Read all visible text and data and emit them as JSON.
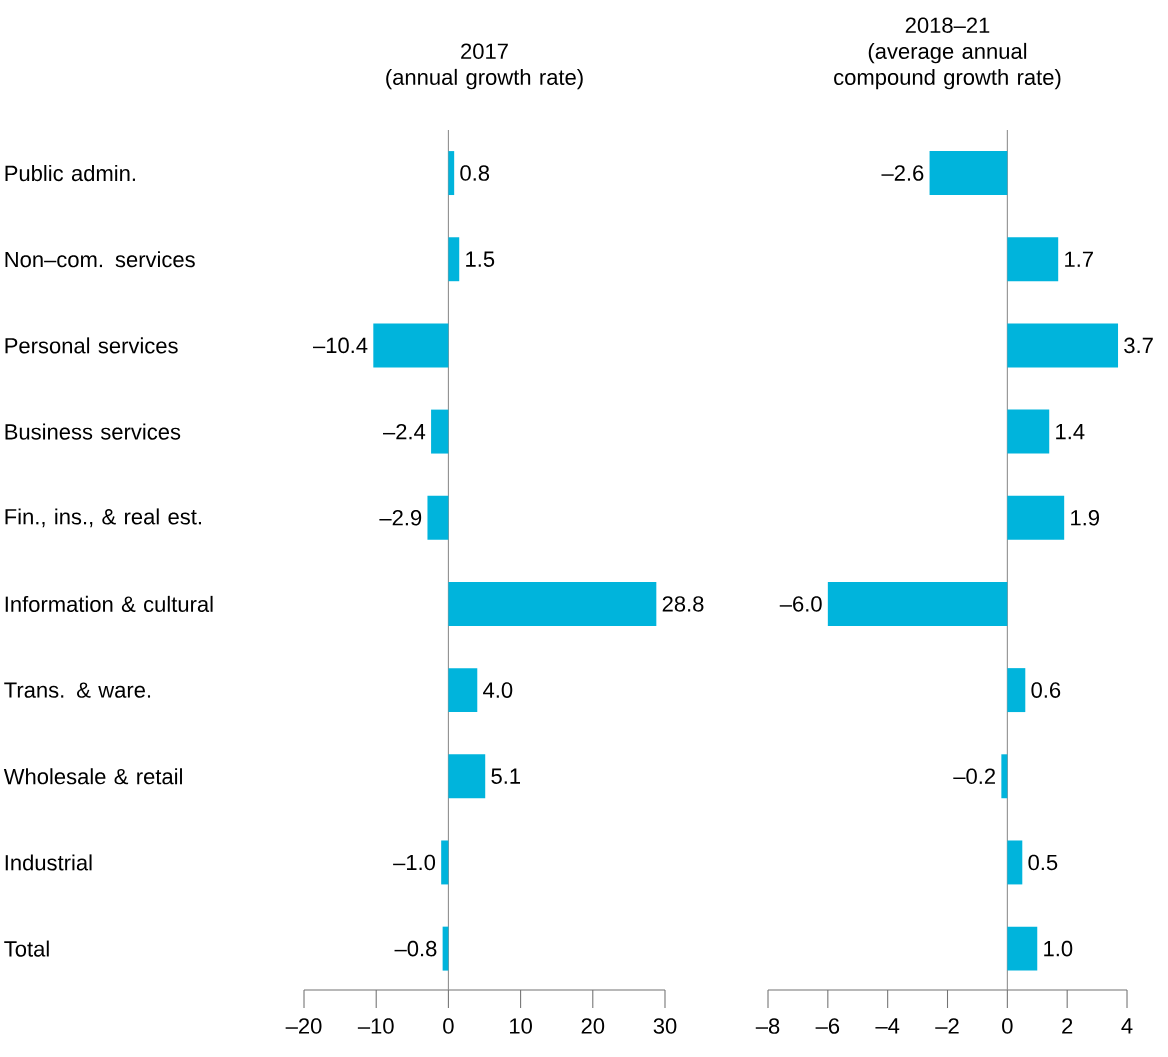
{
  "chart_data": [
    {
      "type": "bar",
      "orientation": "horizontal",
      "title": "2017",
      "subtitle": "(annual growth rate)",
      "categories": [
        "Public admin.",
        "Non–com. services",
        "Personal services",
        "Business services",
        "Fin., ins., & real est.",
        "Information & cultural",
        "Trans. & ware.",
        "Wholesale & retail",
        "Industrial",
        "Total"
      ],
      "values": [
        0.8,
        1.5,
        -10.4,
        -2.4,
        -2.9,
        28.8,
        4.0,
        5.1,
        -1.0,
        -0.8
      ],
      "value_labels": [
        "0.8",
        "1.5",
        "–10.4",
        "–2.4",
        "–2.9",
        "28.8",
        "4.0",
        "5.1",
        "–1.0",
        "–0.8"
      ],
      "color": "#00b4dc",
      "xlim": [
        -20,
        30
      ],
      "xticks": [
        {
          "value": -20,
          "label": "–20"
        },
        {
          "value": -10,
          "label": "–10"
        },
        0,
        10,
        20,
        30
      ],
      "ref_lines": [
        {
          "axis": "x",
          "value": 0,
          "color": "#8c8c8c"
        }
      ]
    },
    {
      "type": "bar",
      "orientation": "horizontal",
      "title": "2018–21",
      "subtitle": "(average annual compound growth rate)",
      "categories": [
        null,
        null,
        null,
        null,
        null,
        null,
        null,
        null,
        null,
        null
      ],
      "values": [
        -2.6,
        1.7,
        3.7,
        1.4,
        1.9,
        -6.0,
        0.6,
        -0.2,
        0.5,
        1.0
      ],
      "value_labels": [
        "–2.6",
        "1.7",
        "3.7",
        "1.4",
        "1.9",
        "–6.0",
        "0.6",
        "–0.2",
        "0.5",
        "1.0"
      ],
      "color": "#00b4dc",
      "xlim": [
        -8,
        4
      ],
      "xticks": [
        {
          "value": -8,
          "label": "–8"
        },
        {
          "value": -6,
          "label": "–6"
        },
        {
          "value": -4,
          "label": "–4"
        },
        {
          "value": -2,
          "label": "–2"
        },
        0,
        2,
        4
      ],
      "tick_labels": "x",
      "ref_lines": [
        {
          "axis": "x",
          "value": 0,
          "color": "#8c8c8c"
        }
      ]
    }
  ]
}
